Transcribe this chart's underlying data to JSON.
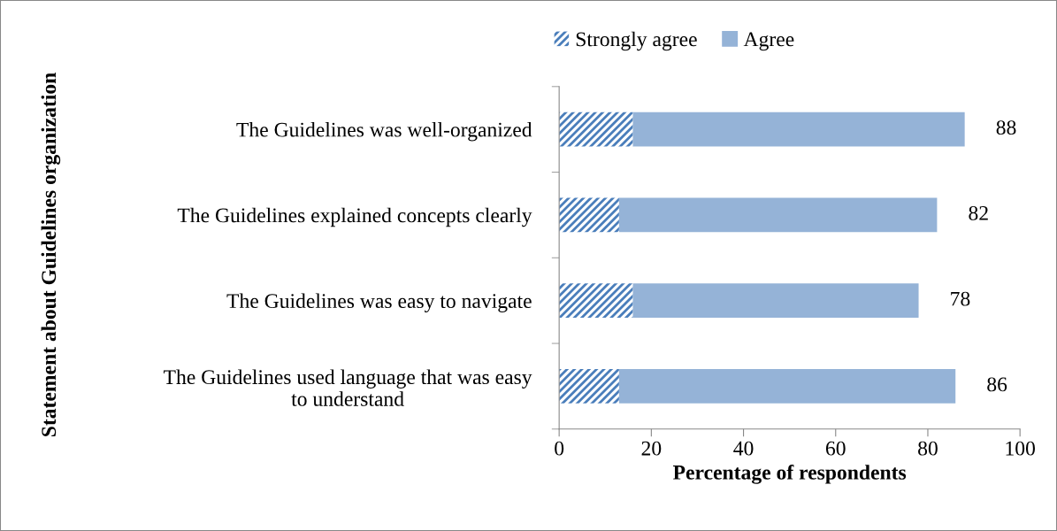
{
  "chart_data": {
    "type": "bar",
    "orientation": "horizontal",
    "stacked": true,
    "xlabel": "Percentage of respondents",
    "ylabel": "Statement about Guidelines organization",
    "categories": [
      "The Guidelines was well-organized",
      "The Guidelines explained concepts clearly",
      "The Guidelines was easy to navigate",
      "The Guidelines used language that was easy\nto understand"
    ],
    "series": [
      {
        "name": "Strongly agree",
        "color": "#4a7ebb",
        "values": [
          16,
          13,
          16,
          13
        ]
      },
      {
        "name": "Agree",
        "color": "#95b3d7",
        "values": [
          72,
          69,
          62,
          73
        ]
      }
    ],
    "totals": [
      "88",
      "82",
      "78",
      "86"
    ],
    "xlim": [
      0,
      100
    ],
    "xticks": [
      0,
      20,
      40,
      60,
      80,
      100
    ],
    "grid": false,
    "legend": "top"
  }
}
